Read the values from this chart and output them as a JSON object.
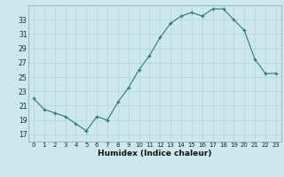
{
  "x": [
    0,
    1,
    2,
    3,
    4,
    5,
    6,
    7,
    8,
    9,
    10,
    11,
    12,
    13,
    14,
    15,
    16,
    17,
    18,
    19,
    20,
    21,
    22,
    23
  ],
  "y": [
    22,
    20.5,
    20,
    19.5,
    18.5,
    17.5,
    19.5,
    19,
    21.5,
    23.5,
    26,
    28,
    30.5,
    32.5,
    33.5,
    34,
    33.5,
    34.5,
    34.5,
    33,
    31.5,
    27.5,
    25.5,
    25.5
  ],
  "xlabel": "Humidex (Indice chaleur)",
  "bg_color": "#cce8ee",
  "grid_color": "#b8d8de",
  "line_color": "#2d7c6e",
  "ylim": [
    16,
    35
  ],
  "xlim": [
    -0.5,
    23.5
  ],
  "yticks": [
    17,
    19,
    21,
    23,
    25,
    27,
    29,
    31,
    33
  ],
  "xticks": [
    0,
    1,
    2,
    3,
    4,
    5,
    6,
    7,
    8,
    9,
    10,
    11,
    12,
    13,
    14,
    15,
    16,
    17,
    18,
    19,
    20,
    21,
    22,
    23
  ]
}
